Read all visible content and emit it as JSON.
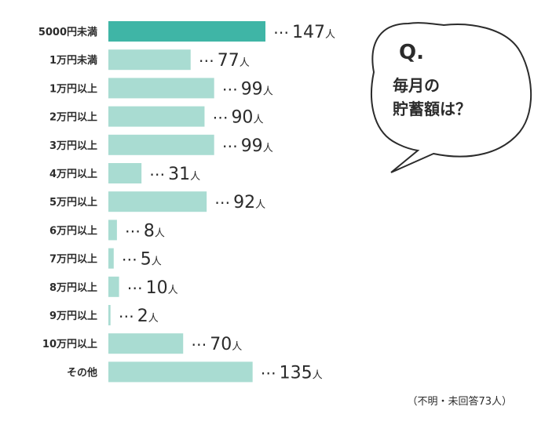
{
  "question": {
    "q_mark": "Q.",
    "line1": "毎月の",
    "line2": "貯蓄額は？"
  },
  "note": "（不明・未回答73人）",
  "unit": "人",
  "colors": {
    "highlight_bar": "#3fb5a6",
    "bar": "#a9dcd2",
    "text": "#2b2b2b"
  },
  "chart_data": {
    "type": "bar",
    "orientation": "horizontal",
    "categories": [
      "5000円未満",
      "1万円未満",
      "1万円以上",
      "2万円以上",
      "3万円以上",
      "4万円以上",
      "5万円以上",
      "6万円以上",
      "7万円以上",
      "8万円以上",
      "9万円以上",
      "10万円以上",
      "その他"
    ],
    "values": [
      147,
      77,
      99,
      90,
      99,
      31,
      92,
      8,
      5,
      10,
      2,
      70,
      135
    ],
    "highlight_index": 0,
    "value_suffix": "人"
  }
}
